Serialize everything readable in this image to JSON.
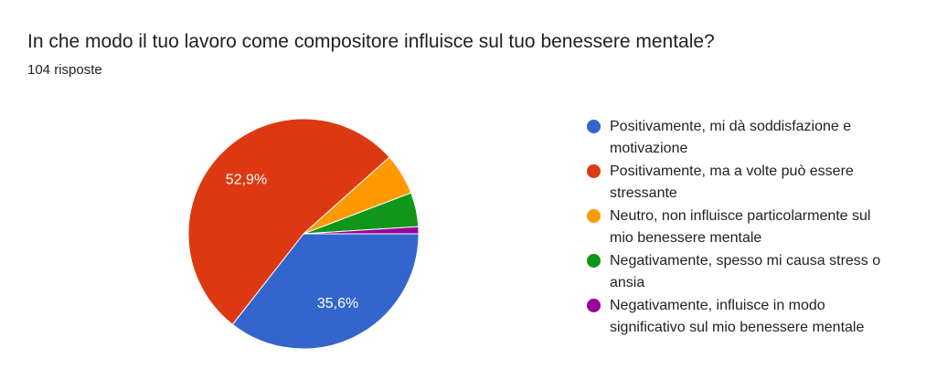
{
  "chart_data": {
    "type": "pie",
    "title": "In che modo il tuo lavoro come compositore influisce sul tuo benessere mentale?",
    "subtitle": "104 risposte",
    "categories": [
      "Positivamente, mi dà soddisfazione e motivazione",
      "Positivamente, ma a volte può essere stressante",
      "Neutro, non influisce particolarmente sul mio benessere mentale",
      "Negativamente, spesso mi causa stress o ansia",
      "Negativamente, influisce in modo significativo sul mio benessere mentale"
    ],
    "values": [
      35.6,
      52.9,
      5.8,
      4.8,
      1.0
    ],
    "value_labels": [
      "35,6%",
      "52,9%",
      null,
      null,
      null
    ],
    "colors": [
      "#3366cc",
      "#dc3912",
      "#ff9900",
      "#109618",
      "#990099"
    ],
    "legend": "right"
  }
}
